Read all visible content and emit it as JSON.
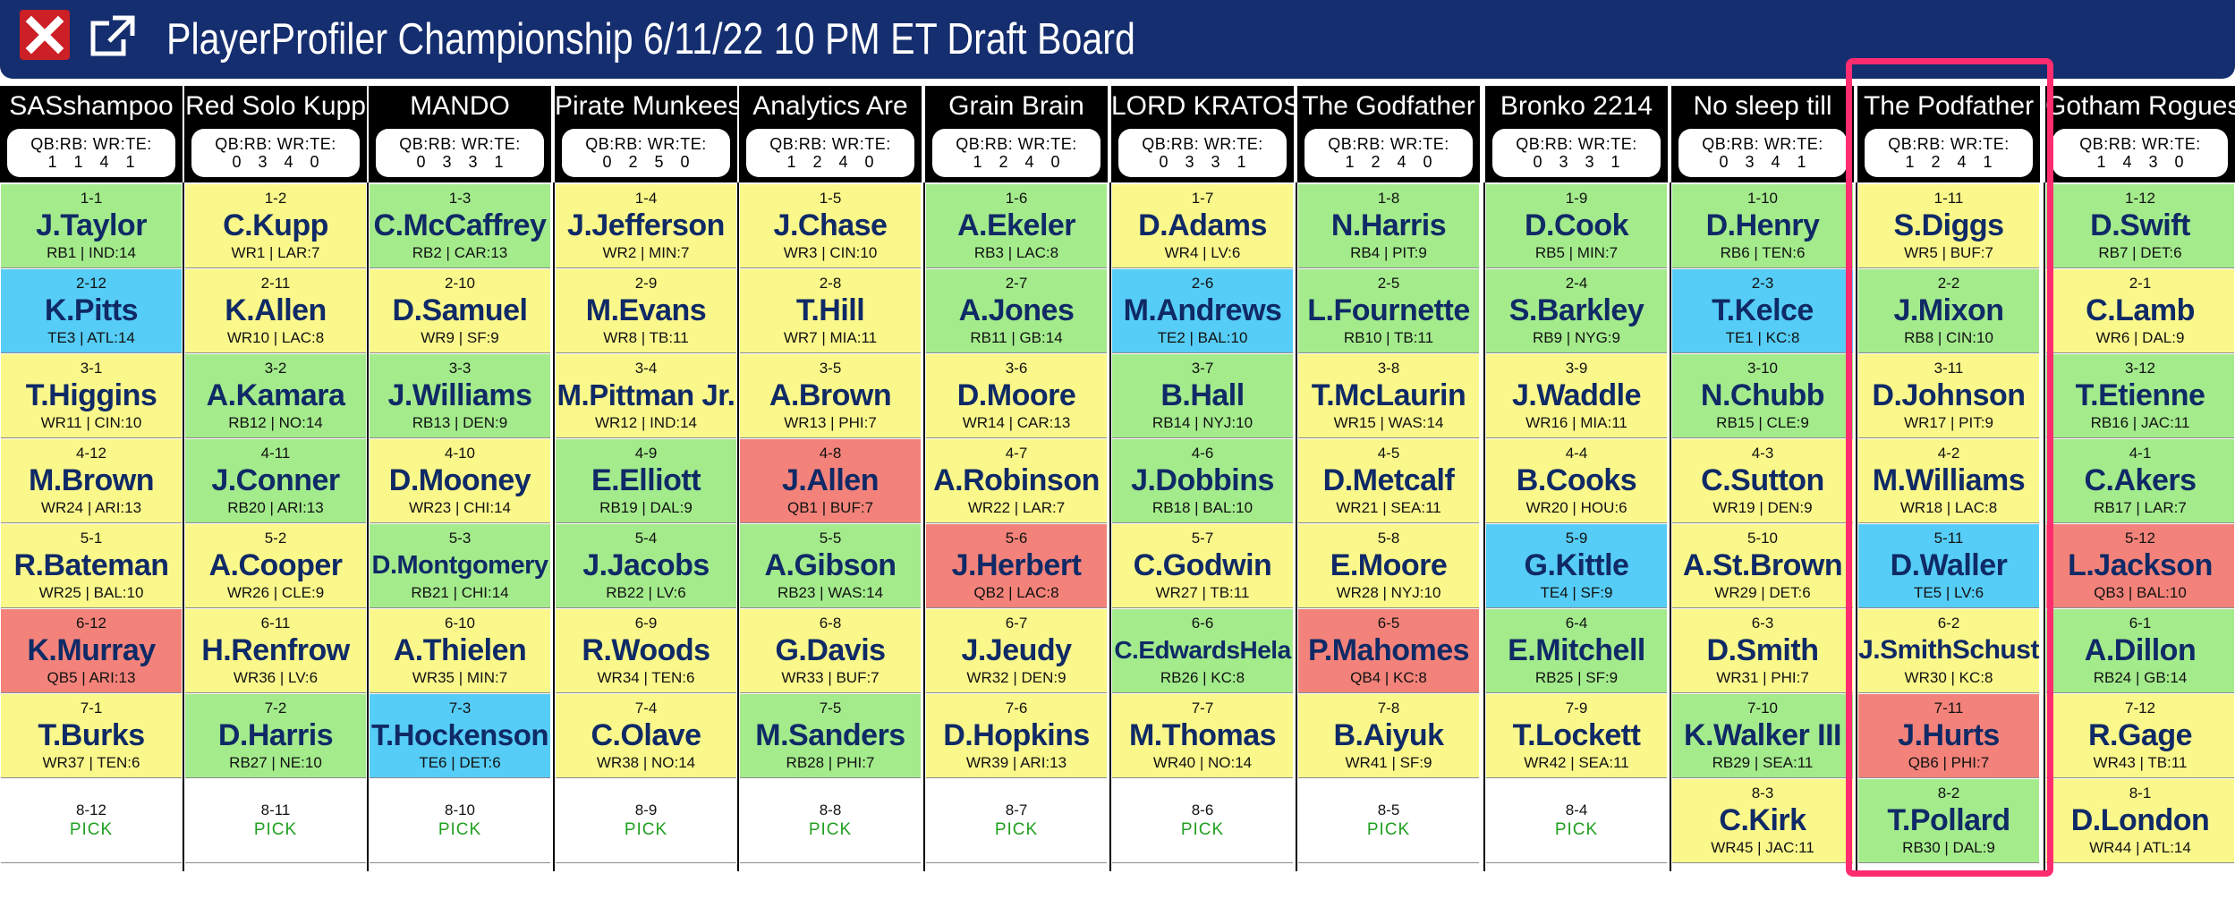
{
  "window": {
    "title": "PlayerProfiler Championship 6/11/22 10 PM ET Draft Board",
    "close_icon": "close-x-icon",
    "popout_icon": "external-link-icon"
  },
  "colors": {
    "header_bg": "#152e6f",
    "RB": "#a4eb8c",
    "WR": "#fbf88b",
    "TE": "#56cdf6",
    "QB": "#f3837a",
    "pick": "#ffffff",
    "highlight": "#ff2d6f",
    "pick_text": "#21a021"
  },
  "counts_label": "QB:RB: WR:TE:",
  "pick_label": "PICK",
  "highlighted_team": "The Podfather",
  "teams": [
    {
      "name": "SASshampoo",
      "counts": "1 1 4 1",
      "picks": [
        {
          "num": "1-1",
          "player": "J.Taylor",
          "meta": "RB1 | IND:14",
          "pos": "RB"
        },
        {
          "num": "2-12",
          "player": "K.Pitts",
          "meta": "TE3 | ATL:14",
          "pos": "TE"
        },
        {
          "num": "3-1",
          "player": "T.Higgins",
          "meta": "WR11 | CIN:10",
          "pos": "WR"
        },
        {
          "num": "4-12",
          "player": "M.Brown",
          "meta": "WR24 | ARI:13",
          "pos": "WR"
        },
        {
          "num": "5-1",
          "player": "R.Bateman",
          "meta": "WR25 | BAL:10",
          "pos": "WR"
        },
        {
          "num": "6-12",
          "player": "K.Murray",
          "meta": "QB5 | ARI:13",
          "pos": "QB"
        },
        {
          "num": "7-1",
          "player": "T.Burks",
          "meta": "WR37 | TEN:6",
          "pos": "WR"
        },
        {
          "num": "8-12",
          "player": "",
          "meta": "",
          "pos": "PICK"
        }
      ]
    },
    {
      "name": "Red Solo Kupp",
      "counts": "0 3 4 0",
      "picks": [
        {
          "num": "1-2",
          "player": "C.Kupp",
          "meta": "WR1 | LAR:7",
          "pos": "WR"
        },
        {
          "num": "2-11",
          "player": "K.Allen",
          "meta": "WR10 | LAC:8",
          "pos": "WR"
        },
        {
          "num": "3-2",
          "player": "A.Kamara",
          "meta": "RB12 | NO:14",
          "pos": "RB"
        },
        {
          "num": "4-11",
          "player": "J.Conner",
          "meta": "RB20 | ARI:13",
          "pos": "RB"
        },
        {
          "num": "5-2",
          "player": "A.Cooper",
          "meta": "WR26 | CLE:9",
          "pos": "WR"
        },
        {
          "num": "6-11",
          "player": "H.Renfrow",
          "meta": "WR36 | LV:6",
          "pos": "WR"
        },
        {
          "num": "7-2",
          "player": "D.Harris",
          "meta": "RB27 | NE:10",
          "pos": "RB"
        },
        {
          "num": "8-11",
          "player": "",
          "meta": "",
          "pos": "PICK"
        }
      ]
    },
    {
      "name": "MANDO",
      "counts": "0 3 3 1",
      "picks": [
        {
          "num": "1-3",
          "player": "C.McCaffrey",
          "meta": "RB2 | CAR:13",
          "pos": "RB"
        },
        {
          "num": "2-10",
          "player": "D.Samuel",
          "meta": "WR9 | SF:9",
          "pos": "WR"
        },
        {
          "num": "3-3",
          "player": "J.Williams",
          "meta": "RB13 | DEN:9",
          "pos": "RB"
        },
        {
          "num": "4-10",
          "player": "D.Mooney",
          "meta": "WR23 | CHI:14",
          "pos": "WR"
        },
        {
          "num": "5-3",
          "player": "D.Montgomery",
          "meta": "RB21 | CHI:14",
          "pos": "RB"
        },
        {
          "num": "6-10",
          "player": "A.Thielen",
          "meta": "WR35 | MIN:7",
          "pos": "WR"
        },
        {
          "num": "7-3",
          "player": "T.Hockenson",
          "meta": "TE6 | DET:6",
          "pos": "TE"
        },
        {
          "num": "8-10",
          "player": "",
          "meta": "",
          "pos": "PICK"
        }
      ]
    },
    {
      "name": "Pirate Munkees",
      "counts": "0 2 5 0",
      "picks": [
        {
          "num": "1-4",
          "player": "J.Jefferson",
          "meta": "WR2 | MIN:7",
          "pos": "WR"
        },
        {
          "num": "2-9",
          "player": "M.Evans",
          "meta": "WR8 | TB:11",
          "pos": "WR"
        },
        {
          "num": "3-4",
          "player": "M.Pittman Jr.",
          "meta": "WR12 | IND:14",
          "pos": "WR"
        },
        {
          "num": "4-9",
          "player": "E.Elliott",
          "meta": "RB19 | DAL:9",
          "pos": "RB"
        },
        {
          "num": "5-4",
          "player": "J.Jacobs",
          "meta": "RB22 | LV:6",
          "pos": "RB"
        },
        {
          "num": "6-9",
          "player": "R.Woods",
          "meta": "WR34 | TEN:6",
          "pos": "WR"
        },
        {
          "num": "7-4",
          "player": "C.Olave",
          "meta": "WR38 | NO:14",
          "pos": "WR"
        },
        {
          "num": "8-9",
          "player": "",
          "meta": "",
          "pos": "PICK"
        }
      ]
    },
    {
      "name": "Analytics Are",
      "counts": "1 2 4 0",
      "picks": [
        {
          "num": "1-5",
          "player": "J.Chase",
          "meta": "WR3 | CIN:10",
          "pos": "WR"
        },
        {
          "num": "2-8",
          "player": "T.Hill",
          "meta": "WR7 | MIA:11",
          "pos": "WR"
        },
        {
          "num": "3-5",
          "player": "A.Brown",
          "meta": "WR13 | PHI:7",
          "pos": "WR"
        },
        {
          "num": "4-8",
          "player": "J.Allen",
          "meta": "QB1 | BUF:7",
          "pos": "QB"
        },
        {
          "num": "5-5",
          "player": "A.Gibson",
          "meta": "RB23 | WAS:14",
          "pos": "RB"
        },
        {
          "num": "6-8",
          "player": "G.Davis",
          "meta": "WR33 | BUF:7",
          "pos": "WR"
        },
        {
          "num": "7-5",
          "player": "M.Sanders",
          "meta": "RB28 | PHI:7",
          "pos": "RB"
        },
        {
          "num": "8-8",
          "player": "",
          "meta": "",
          "pos": "PICK"
        }
      ]
    },
    {
      "name": "Grain Brain",
      "counts": "1 2 4 0",
      "picks": [
        {
          "num": "1-6",
          "player": "A.Ekeler",
          "meta": "RB3 | LAC:8",
          "pos": "RB"
        },
        {
          "num": "2-7",
          "player": "A.Jones",
          "meta": "RB11 | GB:14",
          "pos": "RB"
        },
        {
          "num": "3-6",
          "player": "D.Moore",
          "meta": "WR14 | CAR:13",
          "pos": "WR"
        },
        {
          "num": "4-7",
          "player": "A.Robinson",
          "meta": "WR22 | LAR:7",
          "pos": "WR"
        },
        {
          "num": "5-6",
          "player": "J.Herbert",
          "meta": "QB2 | LAC:8",
          "pos": "QB"
        },
        {
          "num": "6-7",
          "player": "J.Jeudy",
          "meta": "WR32 | DEN:9",
          "pos": "WR"
        },
        {
          "num": "7-6",
          "player": "D.Hopkins",
          "meta": "WR39 | ARI:13",
          "pos": "WR"
        },
        {
          "num": "8-7",
          "player": "",
          "meta": "",
          "pos": "PICK"
        }
      ]
    },
    {
      "name": "LORD KRATOS",
      "counts": "0 3 3 1",
      "picks": [
        {
          "num": "1-7",
          "player": "D.Adams",
          "meta": "WR4 | LV:6",
          "pos": "WR"
        },
        {
          "num": "2-6",
          "player": "M.Andrews",
          "meta": "TE2 | BAL:10",
          "pos": "TE"
        },
        {
          "num": "3-7",
          "player": "B.Hall",
          "meta": "RB14 | NYJ:10",
          "pos": "RB"
        },
        {
          "num": "4-6",
          "player": "J.Dobbins",
          "meta": "RB18 | BAL:10",
          "pos": "RB"
        },
        {
          "num": "5-7",
          "player": "C.Godwin",
          "meta": "WR27 | TB:11",
          "pos": "WR"
        },
        {
          "num": "6-6",
          "player": "C.EdwardsHela",
          "meta": "RB26 | KC:8",
          "pos": "RB"
        },
        {
          "num": "7-7",
          "player": "M.Thomas",
          "meta": "WR40 | NO:14",
          "pos": "WR"
        },
        {
          "num": "8-6",
          "player": "",
          "meta": "",
          "pos": "PICK"
        }
      ]
    },
    {
      "name": "The Godfather",
      "counts": "1 2 4 0",
      "picks": [
        {
          "num": "1-8",
          "player": "N.Harris",
          "meta": "RB4 | PIT:9",
          "pos": "RB"
        },
        {
          "num": "2-5",
          "player": "L.Fournette",
          "meta": "RB10 | TB:11",
          "pos": "RB"
        },
        {
          "num": "3-8",
          "player": "T.McLaurin",
          "meta": "WR15 | WAS:14",
          "pos": "WR"
        },
        {
          "num": "4-5",
          "player": "D.Metcalf",
          "meta": "WR21 | SEA:11",
          "pos": "WR"
        },
        {
          "num": "5-8",
          "player": "E.Moore",
          "meta": "WR28 | NYJ:10",
          "pos": "WR"
        },
        {
          "num": "6-5",
          "player": "P.Mahomes",
          "meta": "QB4 | KC:8",
          "pos": "QB"
        },
        {
          "num": "7-8",
          "player": "B.Aiyuk",
          "meta": "WR41 | SF:9",
          "pos": "WR"
        },
        {
          "num": "8-5",
          "player": "",
          "meta": "",
          "pos": "PICK"
        }
      ]
    },
    {
      "name": "Bronko 2214",
      "counts": "0 3 3 1",
      "picks": [
        {
          "num": "1-9",
          "player": "D.Cook",
          "meta": "RB5 | MIN:7",
          "pos": "RB"
        },
        {
          "num": "2-4",
          "player": "S.Barkley",
          "meta": "RB9 | NYG:9",
          "pos": "RB"
        },
        {
          "num": "3-9",
          "player": "J.Waddle",
          "meta": "WR16 | MIA:11",
          "pos": "WR"
        },
        {
          "num": "4-4",
          "player": "B.Cooks",
          "meta": "WR20 | HOU:6",
          "pos": "WR"
        },
        {
          "num": "5-9",
          "player": "G.Kittle",
          "meta": "TE4 | SF:9",
          "pos": "TE"
        },
        {
          "num": "6-4",
          "player": "E.Mitchell",
          "meta": "RB25 | SF:9",
          "pos": "RB"
        },
        {
          "num": "7-9",
          "player": "T.Lockett",
          "meta": "WR42 | SEA:11",
          "pos": "WR"
        },
        {
          "num": "8-4",
          "player": "",
          "meta": "",
          "pos": "PICK"
        }
      ]
    },
    {
      "name": "No sleep till",
      "counts": "0 3 4 1",
      "picks": [
        {
          "num": "1-10",
          "player": "D.Henry",
          "meta": "RB6 | TEN:6",
          "pos": "RB"
        },
        {
          "num": "2-3",
          "player": "T.Kelce",
          "meta": "TE1 | KC:8",
          "pos": "TE"
        },
        {
          "num": "3-10",
          "player": "N.Chubb",
          "meta": "RB15 | CLE:9",
          "pos": "RB"
        },
        {
          "num": "4-3",
          "player": "C.Sutton",
          "meta": "WR19 | DEN:9",
          "pos": "WR"
        },
        {
          "num": "5-10",
          "player": "A.St.Brown",
          "meta": "WR29 | DET:6",
          "pos": "WR"
        },
        {
          "num": "6-3",
          "player": "D.Smith",
          "meta": "WR31 | PHI:7",
          "pos": "WR"
        },
        {
          "num": "7-10",
          "player": "K.Walker III",
          "meta": "RB29 | SEA:11",
          "pos": "RB"
        },
        {
          "num": "8-3",
          "player": "C.Kirk",
          "meta": "WR45 | JAC:11",
          "pos": "WR"
        }
      ]
    },
    {
      "name": "The Podfather",
      "counts": "1 2 4 1",
      "picks": [
        {
          "num": "1-11",
          "player": "S.Diggs",
          "meta": "WR5 | BUF:7",
          "pos": "WR"
        },
        {
          "num": "2-2",
          "player": "J.Mixon",
          "meta": "RB8 | CIN:10",
          "pos": "RB"
        },
        {
          "num": "3-11",
          "player": "D.Johnson",
          "meta": "WR17 | PIT:9",
          "pos": "WR"
        },
        {
          "num": "4-2",
          "player": "M.Williams",
          "meta": "WR18 | LAC:8",
          "pos": "WR"
        },
        {
          "num": "5-11",
          "player": "D.Waller",
          "meta": "TE5 | LV:6",
          "pos": "TE"
        },
        {
          "num": "6-2",
          "player": "J.SmithSchust",
          "meta": "WR30 | KC:8",
          "pos": "WR"
        },
        {
          "num": "7-11",
          "player": "J.Hurts",
          "meta": "QB6 | PHI:7",
          "pos": "QB"
        },
        {
          "num": "8-2",
          "player": "T.Pollard",
          "meta": "RB30 | DAL:9",
          "pos": "RB"
        }
      ]
    },
    {
      "name": "Gotham Rogues",
      "counts": "1 4 3 0",
      "picks": [
        {
          "num": "1-12",
          "player": "D.Swift",
          "meta": "RB7 | DET:6",
          "pos": "RB"
        },
        {
          "num": "2-1",
          "player": "C.Lamb",
          "meta": "WR6 | DAL:9",
          "pos": "WR"
        },
        {
          "num": "3-12",
          "player": "T.Etienne",
          "meta": "RB16 | JAC:11",
          "pos": "RB"
        },
        {
          "num": "4-1",
          "player": "C.Akers",
          "meta": "RB17 | LAR:7",
          "pos": "RB"
        },
        {
          "num": "5-12",
          "player": "L.Jackson",
          "meta": "QB3 | BAL:10",
          "pos": "QB"
        },
        {
          "num": "6-1",
          "player": "A.Dillon",
          "meta": "RB24 | GB:14",
          "pos": "RB"
        },
        {
          "num": "7-12",
          "player": "R.Gage",
          "meta": "WR43 | TB:11",
          "pos": "WR"
        },
        {
          "num": "8-1",
          "player": "D.London",
          "meta": "WR44 | ATL:14",
          "pos": "WR"
        }
      ]
    }
  ]
}
